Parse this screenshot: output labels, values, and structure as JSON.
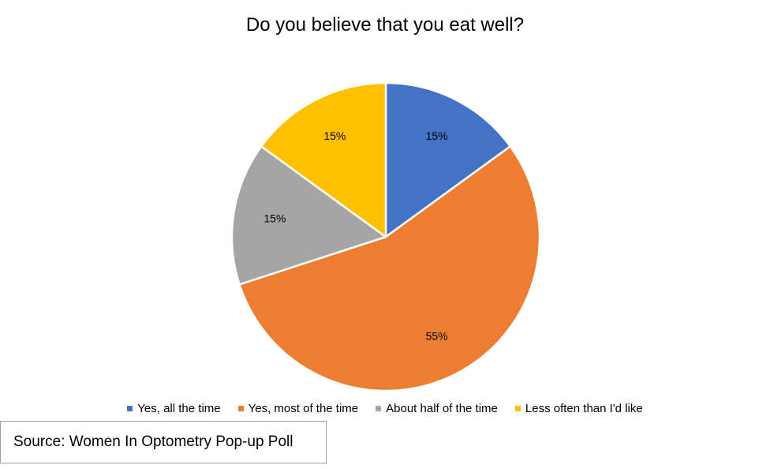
{
  "chart_data": {
    "type": "pie",
    "title": "Do you believe that you eat well?",
    "slices": [
      {
        "label": "Yes, all the time",
        "value": 15,
        "value_label": "15%",
        "color": "#4472C4"
      },
      {
        "label": "Yes, most of the time",
        "value": 55,
        "value_label": "55%",
        "color": "#ED7D31"
      },
      {
        "label": "About half of the time",
        "value": 15,
        "value_label": "15%",
        "color": "#A5A5A5"
      },
      {
        "label": "Less often than I'd like",
        "value": 15,
        "value_label": "15%",
        "color": "#FFC000"
      }
    ],
    "legend_position": "bottom"
  },
  "source_note": "Source: Women In Optometry Pop-up Poll"
}
